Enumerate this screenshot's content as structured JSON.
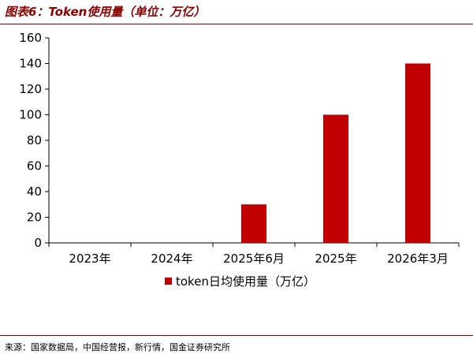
{
  "figure": {
    "title": "图表6：Token使用量（单位：万亿）",
    "source": "来源：国家数据局，中国经营报，新行情，国金证券研究所"
  },
  "colors": {
    "bar": "#c00000",
    "title": "#8b0000",
    "rule": "#8b0000"
  },
  "chart_data": {
    "type": "bar",
    "categories": [
      "2023年",
      "2024年",
      "2025年6月",
      "2025年",
      "2026年3月"
    ],
    "series": [
      {
        "name": "token日均使用量（万亿）",
        "values": [
          0,
          0,
          30,
          100,
          140
        ]
      }
    ],
    "ylim": [
      0,
      160
    ],
    "yticks": [
      0,
      20,
      40,
      60,
      80,
      100,
      120,
      140,
      160
    ],
    "grid": false,
    "legend": "bottom"
  }
}
